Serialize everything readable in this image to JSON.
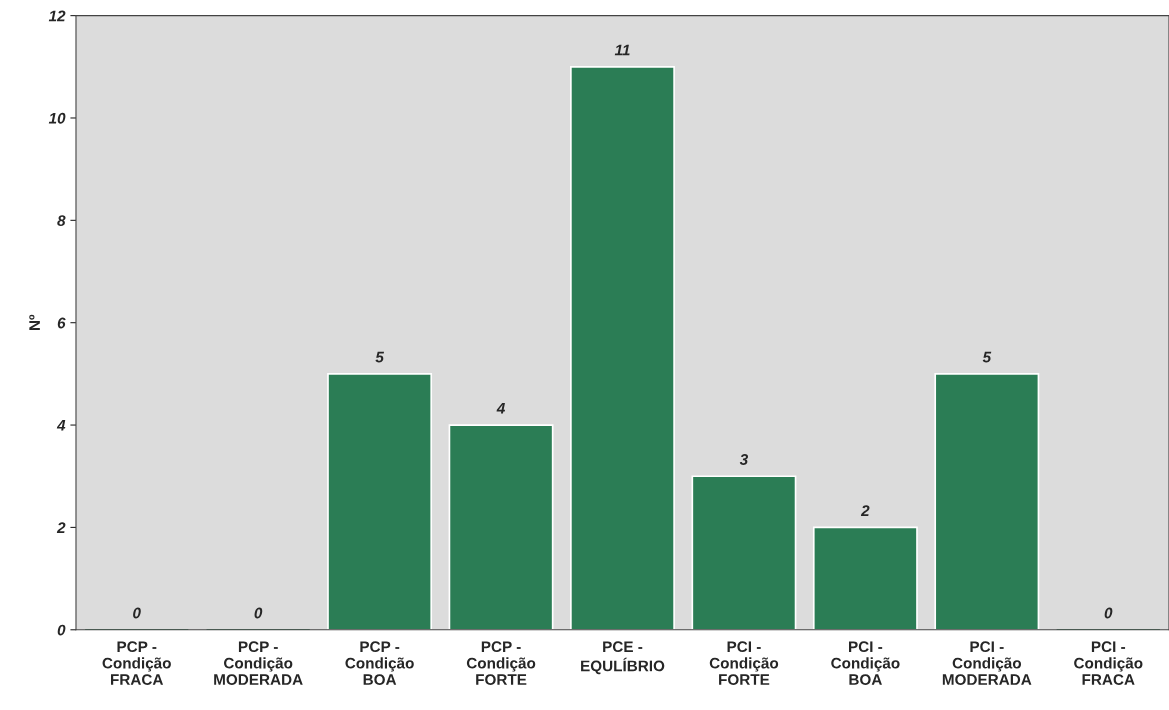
{
  "chart_data": {
    "type": "bar",
    "ylabel": "Nº",
    "categories": [
      "PCP -\nCondição\nFRACA",
      "PCP -\nCondição\nMODERADA",
      "PCP -\nCondição\nBOA",
      "PCP -\nCondição\nFORTE",
      "PCE -\nEQULÍBRIO",
      "PCI -\nCondição\nFORTE",
      "PCI -\nCondição\nBOA",
      "PCI -\nCondição\nMODERADA",
      "PCI -\nCondição\nFRACA"
    ],
    "values": [
      0,
      0,
      5,
      4,
      11,
      3,
      2,
      5,
      0
    ],
    "color": "#2b7d55",
    "ylim": [
      0,
      12
    ],
    "yticks": [
      0,
      2,
      4,
      6,
      8,
      10,
      12
    ],
    "data_labels": true,
    "grid": false,
    "legend": false
  }
}
